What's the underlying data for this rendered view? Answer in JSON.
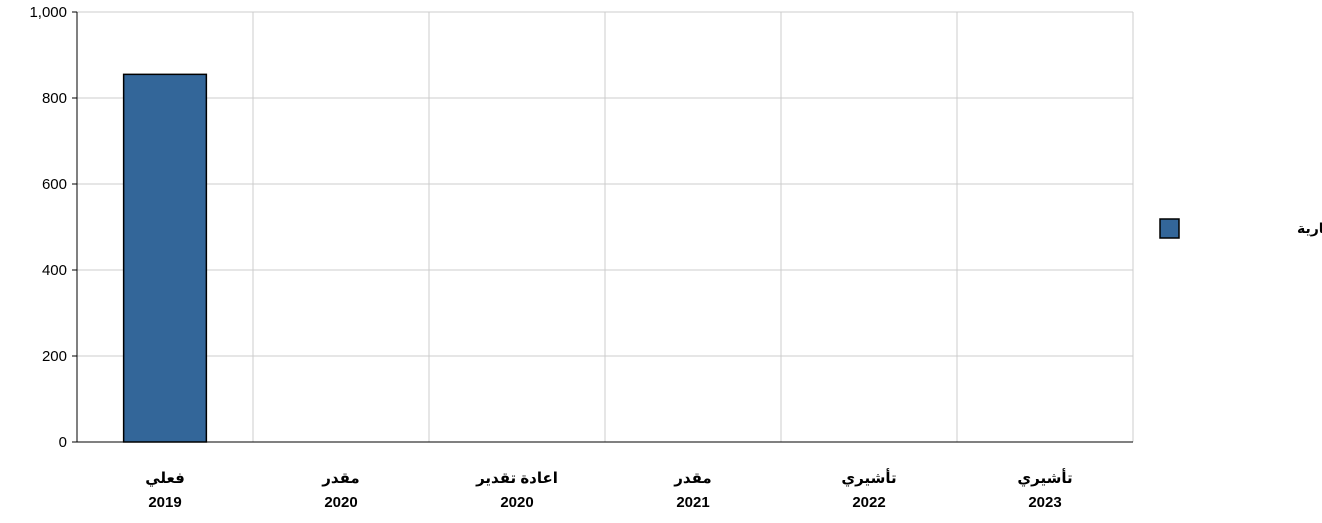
{
  "chart_data": {
    "type": "bar",
    "categories": [
      {
        "label": "فعلي",
        "year": "2019"
      },
      {
        "label": "مقدر",
        "year": "2020"
      },
      {
        "label": "اعادة تقدير",
        "year": "2020"
      },
      {
        "label": "مقدر",
        "year": "2021"
      },
      {
        "label": "تأشيري",
        "year": "2022"
      },
      {
        "label": "تأشيري",
        "year": "2023"
      }
    ],
    "series": [
      {
        "name": "النفقات الجارية",
        "values": [
          855,
          0,
          0,
          0,
          0,
          0
        ],
        "color": "#336699"
      }
    ],
    "ylim": [
      0,
      1000
    ],
    "yticks": [
      "0",
      "200",
      "400",
      "600",
      "800",
      "1,000"
    ],
    "grid": true,
    "legend_position": "right"
  }
}
